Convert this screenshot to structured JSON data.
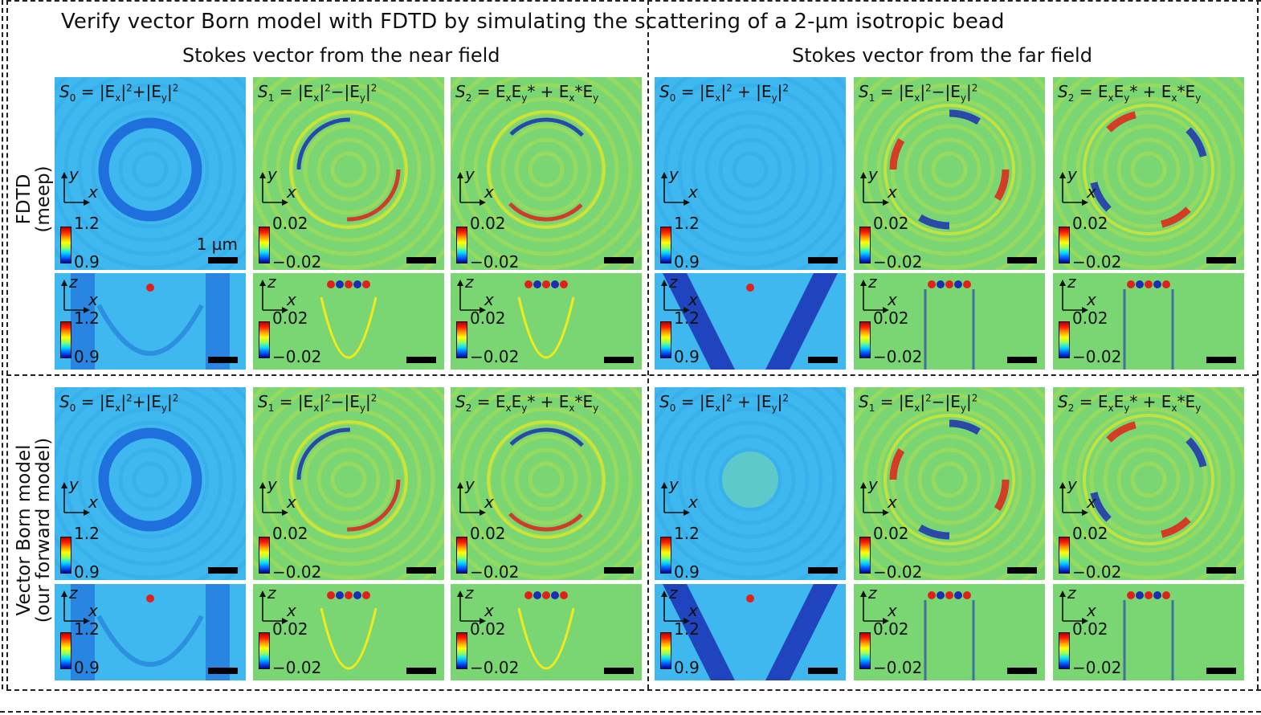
{
  "figure": {
    "title": "Verify vector Born model with FDTD by simulating the scattering of a 2-µm isotropic bead",
    "sections": [
      {
        "label": "Stokes vector from the near field"
      },
      {
        "label": "Stokes vector from the far field"
      }
    ],
    "rows": [
      {
        "label_line1": "FDTD",
        "label_line2": "(meep)"
      },
      {
        "label_line1": "Vector Born model",
        "label_line2": "(our forward model)"
      }
    ],
    "scale_bar_label": "1 µm",
    "colors": {
      "background": "#3fb8ef",
      "neutral_green": "#7ad672",
      "ring_blue": "#1f6fdc",
      "red": "#e0201a",
      "yellow": "#f2ea1c",
      "dark_blue": "#1a2fb4"
    }
  },
  "panel_titles": {
    "s0_near": [
      "S",
      "0",
      " = |E",
      "x",
      "|",
      "2",
      "+|E",
      "y",
      "|",
      "2"
    ],
    "s1": [
      "S",
      "1",
      " = |E",
      "x",
      "|",
      "2",
      "−|E",
      "y",
      "|",
      "2"
    ],
    "s2": [
      "S",
      "2",
      " = E",
      "x",
      "E",
      "y",
      "* + E",
      "x",
      "*E",
      "y"
    ],
    "s0_far": [
      "S",
      "0",
      " = |E",
      "x",
      "|",
      "2",
      " + |E",
      "y",
      "|",
      "2"
    ]
  },
  "axis_labels": {
    "x": "x",
    "y": "y",
    "z": "z"
  },
  "colorbars": {
    "s0": {
      "max": "1.2",
      "min": "0.9"
    },
    "s12": {
      "max": "0.02",
      "min": "−0.02"
    }
  }
}
